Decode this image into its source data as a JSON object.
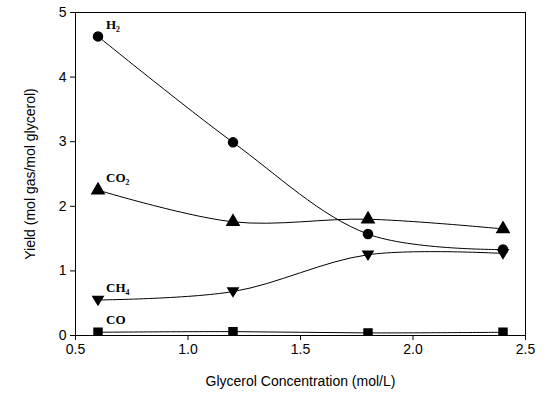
{
  "chart_data": {
    "type": "line",
    "x_label": "Glycerol Concentration (mol/L)",
    "y_label": "Yield (mol gas/mol glycerol)",
    "x": [
      0.6,
      1.2,
      1.8,
      2.4
    ],
    "series": [
      {
        "name": "H₂",
        "color": "#000000",
        "marker": "circle",
        "values": [
          4.63,
          2.99,
          1.57,
          1.33
        ]
      },
      {
        "name": "CO₂",
        "color": "#000000",
        "marker": "triangle-up",
        "values": [
          2.25,
          1.76,
          1.8,
          1.65
        ]
      },
      {
        "name": "CH₄",
        "color": "#000000",
        "marker": "triangle-down",
        "values": [
          0.55,
          0.68,
          1.25,
          1.27
        ]
      },
      {
        "name": "CO",
        "color": "#000000",
        "marker": "square",
        "values": [
          0.05,
          0.06,
          0.04,
          0.05
        ]
      }
    ],
    "xlim": [
      0.5,
      2.5
    ],
    "xticks": [
      0.5,
      {
        "value": 1,
        "label": "1.0"
      },
      1.5,
      {
        "value": 2,
        "label": "2.0"
      },
      2.5
    ],
    "ylim": [
      0,
      5
    ],
    "yticks": [
      0,
      1,
      2,
      3,
      4,
      5
    ],
    "grid": false
  }
}
